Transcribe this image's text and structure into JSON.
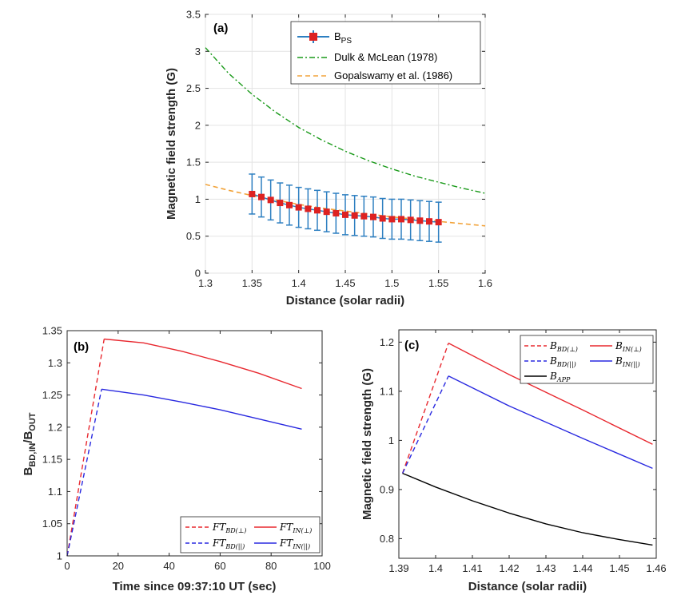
{
  "chart_data": [
    {
      "panel": "(a)",
      "type": "line",
      "xlabel": "Distance (solar radii)",
      "ylabel": "Magnetic field strength (G)",
      "xlim": [
        1.3,
        1.6
      ],
      "ylim": [
        0,
        3.5
      ],
      "xticks": [
        "1.3",
        "1.35",
        "1.4",
        "1.45",
        "1.5",
        "1.55",
        "1.6"
      ],
      "yticks": [
        "0",
        "0.5",
        "1",
        "1.5",
        "2",
        "2.5",
        "3",
        "3.5"
      ],
      "grid": true,
      "legend": "top-right",
      "series": [
        {
          "name": "B",
          "name_sub": "PS",
          "kind": "errorbar",
          "color": "#dd2222",
          "errcolor": "#2d7fc1",
          "x": [
            1.35,
            1.36,
            1.37,
            1.38,
            1.39,
            1.4,
            1.41,
            1.42,
            1.43,
            1.44,
            1.45,
            1.46,
            1.47,
            1.48,
            1.49,
            1.5,
            1.51,
            1.52,
            1.53,
            1.54,
            1.55
          ],
          "y": [
            1.07,
            1.03,
            0.99,
            0.95,
            0.92,
            0.89,
            0.87,
            0.85,
            0.83,
            0.81,
            0.79,
            0.78,
            0.77,
            0.76,
            0.74,
            0.73,
            0.73,
            0.72,
            0.71,
            0.7,
            0.69
          ],
          "err": [
            0.27,
            0.27,
            0.27,
            0.27,
            0.27,
            0.27,
            0.27,
            0.27,
            0.27,
            0.27,
            0.27,
            0.27,
            0.27,
            0.27,
            0.27,
            0.27,
            0.27,
            0.27,
            0.27,
            0.27,
            0.27
          ]
        },
        {
          "name": "Dulk & McLean (1978)",
          "kind": "dashdot",
          "color": "#1a9a1a",
          "x": [
            1.3,
            1.325,
            1.35,
            1.375,
            1.4,
            1.425,
            1.45,
            1.475,
            1.5,
            1.525,
            1.55,
            1.575,
            1.6
          ],
          "y": [
            3.05,
            2.7,
            2.42,
            2.18,
            1.97,
            1.8,
            1.65,
            1.52,
            1.41,
            1.31,
            1.23,
            1.15,
            1.08
          ]
        },
        {
          "name": "Gopalswamy et al. (1986)",
          "kind": "dashed",
          "color": "#f2a33a",
          "x": [
            1.3,
            1.325,
            1.35,
            1.375,
            1.4,
            1.425,
            1.45,
            1.475,
            1.5,
            1.525,
            1.55,
            1.575,
            1.6
          ],
          "y": [
            1.2,
            1.12,
            1.05,
            0.99,
            0.93,
            0.88,
            0.84,
            0.8,
            0.76,
            0.73,
            0.7,
            0.67,
            0.64
          ]
        }
      ]
    },
    {
      "panel": "(b)",
      "type": "line",
      "xlabel": "Time since 09:37:10 UT (sec)",
      "ylabel_main": "B",
      "ylabel_sub1": "BD,IN",
      "ylabel_mid": "/B",
      "ylabel_sub2": "OUT",
      "xlim": [
        0,
        100
      ],
      "ylim": [
        1,
        1.35
      ],
      "xticks": [
        "0",
        "20",
        "40",
        "60",
        "80",
        "100"
      ],
      "yticks": [
        "1",
        "1.05",
        "1.1",
        "1.15",
        "1.2",
        "1.25",
        "1.3",
        "1.35"
      ],
      "grid": false,
      "legend": "bottom-right",
      "series": [
        {
          "name": "FT",
          "name_sub": "BD(⊥)",
          "kind": "dashed",
          "color": "#e8282f",
          "x": [
            0,
            14.5
          ],
          "y": [
            1.0,
            1.337
          ]
        },
        {
          "name": "FT",
          "name_sub": "IN(⊥)",
          "kind": "solid",
          "color": "#e8282f",
          "x": [
            14.5,
            30,
            45,
            60,
            75,
            92
          ],
          "y": [
            1.337,
            1.331,
            1.318,
            1.302,
            1.284,
            1.26
          ]
        },
        {
          "name": "FT",
          "name_sub": "BD(||)",
          "kind": "dashed",
          "color": "#2a2ae0",
          "x": [
            0,
            13.5
          ],
          "y": [
            1.0,
            1.259
          ]
        },
        {
          "name": "FT",
          "name_sub": "IN(||)",
          "kind": "solid",
          "color": "#2a2ae0",
          "x": [
            13.5,
            30,
            45,
            60,
            75,
            92
          ],
          "y": [
            1.259,
            1.25,
            1.239,
            1.227,
            1.213,
            1.197
          ]
        }
      ]
    },
    {
      "panel": "(c)",
      "type": "line",
      "xlabel": "Distance (solar radii)",
      "ylabel": "Magnetic field strength (G)",
      "xlim": [
        1.39,
        1.46
      ],
      "ylim": [
        0.76,
        1.225
      ],
      "xticks": [
        "1.39",
        "1.4",
        "1.41",
        "1.42",
        "1.43",
        "1.44",
        "1.45",
        "1.46"
      ],
      "yticks": [
        "0.8",
        "0.9",
        "1",
        "1.1",
        "1.2"
      ],
      "yvals": [
        0.8,
        0.9,
        1.0,
        1.1,
        1.2
      ],
      "grid": false,
      "legend": "top-right",
      "series": [
        {
          "name": "B",
          "name_sub": "BD(⊥)",
          "kind": "dashed",
          "color": "#e8282f",
          "x": [
            1.391,
            1.4035
          ],
          "y": [
            0.933,
            1.198
          ]
        },
        {
          "name": "B",
          "name_sub": "IN(⊥)",
          "kind": "solid",
          "color": "#e8282f",
          "x": [
            1.4035,
            1.42,
            1.44,
            1.459
          ],
          "y": [
            1.198,
            1.134,
            1.062,
            0.992
          ]
        },
        {
          "name": "B",
          "name_sub": "BD(||)",
          "kind": "dashed",
          "color": "#2a2ae0",
          "x": [
            1.391,
            1.4035
          ],
          "y": [
            0.933,
            1.131
          ]
        },
        {
          "name": "B",
          "name_sub": "IN(||)",
          "kind": "solid",
          "color": "#2a2ae0",
          "x": [
            1.4035,
            1.42,
            1.44,
            1.459
          ],
          "y": [
            1.131,
            1.07,
            1.004,
            0.943
          ]
        },
        {
          "name": "B",
          "name_sub": "APP",
          "kind": "solid",
          "color": "#000000",
          "x": [
            1.391,
            1.4,
            1.41,
            1.42,
            1.43,
            1.44,
            1.45,
            1.459
          ],
          "y": [
            0.933,
            0.905,
            0.877,
            0.852,
            0.83,
            0.812,
            0.798,
            0.787
          ]
        }
      ]
    }
  ]
}
